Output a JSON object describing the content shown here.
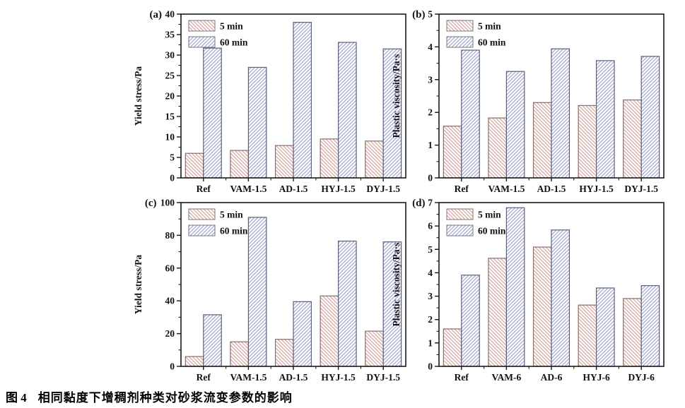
{
  "figure": {
    "caption_label": "图 4",
    "caption_text": "相同黏度下增稠剂种类对砂浆流变参数的影响"
  },
  "legend": {
    "items": [
      "5 min",
      "60 min"
    ],
    "position": "top-left"
  },
  "colors": {
    "series_5min_hatch": "#d9a7a2",
    "series_5min_edge": "#8a6e6a",
    "series_60min_hatch": "#a3abd4",
    "series_60min_edge": "#5c6179",
    "bar_fill": "#ffffff",
    "axis": "#1a1a1a",
    "text": "#111111"
  },
  "chart_data": [
    {
      "id": "a",
      "panel_label": "(a)",
      "type": "bar",
      "ylabel": "Yield stress/Pa",
      "xlabel": "",
      "ylim": [
        0,
        40
      ],
      "ytick_step": 5,
      "yminor_step": 2.5,
      "grid": false,
      "legend_position": "top-left",
      "categories": [
        "Ref",
        "VAM-1.5",
        "AD-1.5",
        "HYJ-1.5",
        "DYJ-1.5"
      ],
      "series": [
        {
          "name": "5 min",
          "values": [
            6.0,
            6.7,
            7.9,
            9.5,
            9.0
          ]
        },
        {
          "name": "60 min",
          "values": [
            31.7,
            27.0,
            38.0,
            33.1,
            31.5
          ]
        }
      ]
    },
    {
      "id": "b",
      "panel_label": "(b)",
      "type": "bar",
      "ylabel": "Plastic viscosity/Pa·s",
      "xlabel": "",
      "ylim": [
        0,
        5
      ],
      "ytick_step": 1,
      "yminor_step": 0.5,
      "grid": false,
      "legend_position": "top-left",
      "categories": [
        "Ref",
        "VAM-1.5",
        "AD-1.5",
        "HYJ-1.5",
        "DYJ-1.5"
      ],
      "series": [
        {
          "name": "5 min",
          "values": [
            1.58,
            1.83,
            2.3,
            2.21,
            2.38
          ]
        },
        {
          "name": "60 min",
          "values": [
            3.9,
            3.25,
            3.94,
            3.58,
            3.71
          ]
        }
      ]
    },
    {
      "id": "c",
      "panel_label": "(c)",
      "type": "bar",
      "ylabel": "Yield stress/Pa",
      "xlabel": "",
      "ylim": [
        0,
        100
      ],
      "ytick_step": 20,
      "yminor_step": 10,
      "grid": false,
      "legend_position": "top-left",
      "categories": [
        "Ref",
        "VAM-1.5",
        "AD-1.5",
        "HYJ-1.5",
        "DYJ-1.5"
      ],
      "series": [
        {
          "name": "5 min",
          "values": [
            6,
            15,
            16.5,
            43,
            21.5
          ]
        },
        {
          "name": "60 min",
          "values": [
            31.5,
            91,
            39.5,
            76.5,
            76
          ]
        }
      ]
    },
    {
      "id": "d",
      "panel_label": "(d)",
      "type": "bar",
      "ylabel": "Plastic viscosity/Pa·s",
      "xlabel": "",
      "ylim": [
        0,
        7
      ],
      "ytick_step": 1,
      "yminor_step": 0.5,
      "grid": false,
      "legend_position": "top-left",
      "categories": [
        "Ref",
        "VAM-6",
        "AD-6",
        "HYJ-6",
        "DYJ-6"
      ],
      "series": [
        {
          "name": "5 min",
          "values": [
            1.6,
            4.62,
            5.1,
            2.62,
            2.9
          ]
        },
        {
          "name": "60 min",
          "values": [
            3.9,
            6.78,
            5.83,
            3.35,
            3.45
          ]
        }
      ]
    }
  ]
}
